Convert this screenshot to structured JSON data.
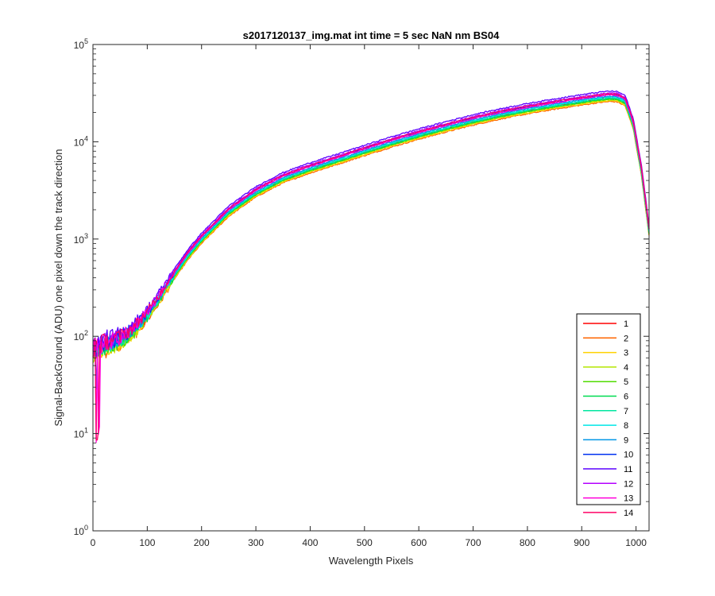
{
  "chart_data": {
    "type": "line",
    "title": "s2017120137_img.mat int time = 5 sec  NaN nm BS04",
    "xlabel": "Wavelength Pixels",
    "ylabel": "Signal-BackGround (ADU) one pixel down the track direction",
    "xlim": [
      0,
      1024
    ],
    "ylim": [
      1,
      100000
    ],
    "yscale": "log",
    "x_ticks": [
      0,
      100,
      200,
      300,
      400,
      500,
      600,
      700,
      800,
      900,
      1000
    ],
    "y_ticks": [
      {
        "value": 1,
        "base": "10",
        "exp": "0"
      },
      {
        "value": 10,
        "base": "10",
        "exp": "1"
      },
      {
        "value": 100,
        "base": "10",
        "exp": "2"
      },
      {
        "value": 1000,
        "base": "10",
        "exp": "3"
      },
      {
        "value": 10000,
        "base": "10",
        "exp": "4"
      },
      {
        "value": 100000,
        "base": "10",
        "exp": "5"
      }
    ],
    "grid": false,
    "legend_position": "bottom-right",
    "base_curve": {
      "x": [
        0,
        10,
        25,
        50,
        75,
        100,
        125,
        150,
        175,
        200,
        250,
        300,
        350,
        400,
        450,
        500,
        550,
        600,
        650,
        700,
        750,
        800,
        850,
        900,
        930,
        950,
        965,
        980,
        995,
        1010,
        1024
      ],
      "y": [
        70,
        75,
        82,
        92,
        115,
        165,
        260,
        430,
        680,
        1000,
        1900,
        3000,
        4200,
        5300,
        6500,
        8000,
        9800,
        11800,
        14000,
        16500,
        19000,
        21500,
        24000,
        26500,
        28000,
        28800,
        28600,
        26000,
        15000,
        5000,
        1200
      ]
    },
    "series": [
      {
        "name": "1",
        "color": "#ff0000",
        "scale": 0.97
      },
      {
        "name": "2",
        "color": "#ff6600",
        "scale": 0.9
      },
      {
        "name": "3",
        "color": "#ffd200",
        "scale": 0.92
      },
      {
        "name": "4",
        "color": "#b4e600",
        "scale": 0.94
      },
      {
        "name": "5",
        "color": "#50dc00",
        "scale": 0.95
      },
      {
        "name": "6",
        "color": "#00dc50",
        "scale": 0.96
      },
      {
        "name": "7",
        "color": "#00e6a0",
        "scale": 0.98
      },
      {
        "name": "8",
        "color": "#00e6e6",
        "scale": 1.0
      },
      {
        "name": "9",
        "color": "#0096e6",
        "scale": 1.02
      },
      {
        "name": "10",
        "color": "#0032f0",
        "scale": 1.06
      },
      {
        "name": "11",
        "color": "#5a00ff",
        "scale": 1.15
      },
      {
        "name": "12",
        "color": "#b400ff",
        "scale": 1.1
      },
      {
        "name": "13",
        "color": "#ff00dc",
        "scale": 1.05
      },
      {
        "name": "14",
        "color": "#ff0064",
        "scale": 1.08
      }
    ]
  }
}
